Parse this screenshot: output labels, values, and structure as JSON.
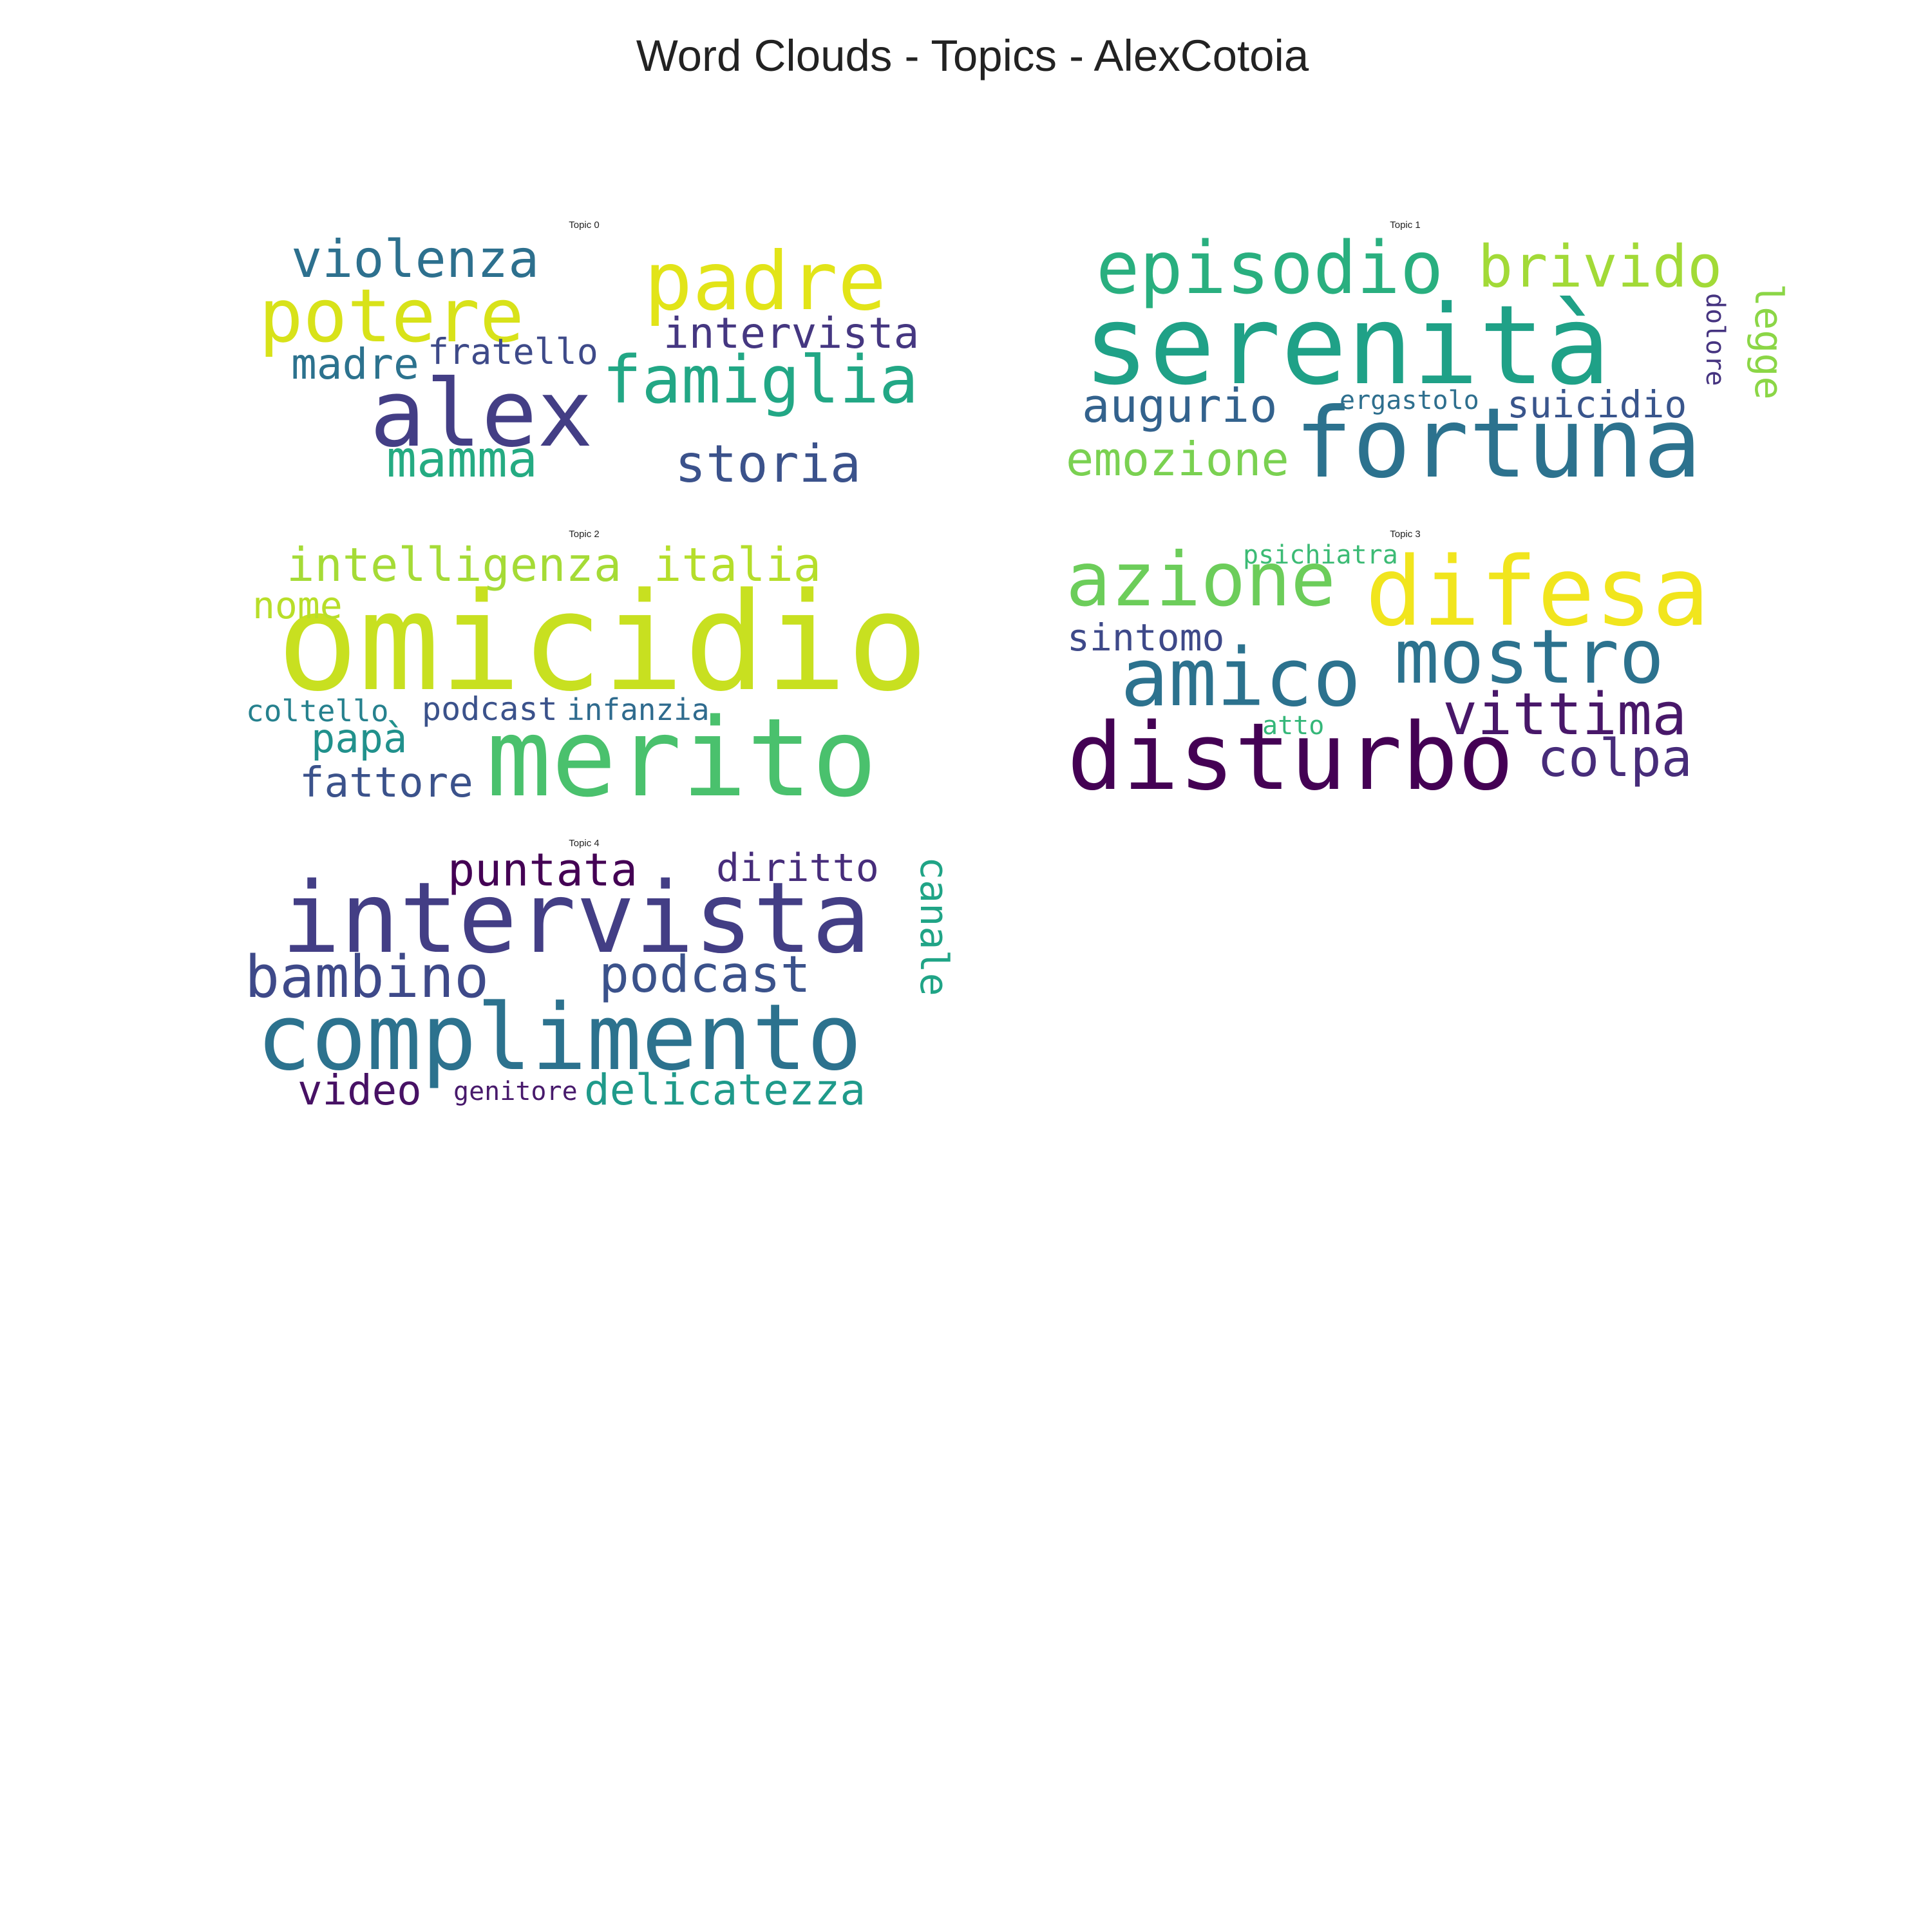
{
  "figure_title": "Word Clouds - Topics - AlexCotoia",
  "panels": [
    {
      "title": "Topic 0",
      "words": [
        {
          "text": "alex",
          "color": "#433e85"
        },
        {
          "text": "padre",
          "color": "#e2e418"
        },
        {
          "text": "potere",
          "color": "#d8e219"
        },
        {
          "text": "famiglia",
          "color": "#22a785"
        },
        {
          "text": "violenza",
          "color": "#2d708e"
        },
        {
          "text": "storia",
          "color": "#3b528b"
        },
        {
          "text": "mamma",
          "color": "#25ab82"
        },
        {
          "text": "intervista",
          "color": "#453781"
        },
        {
          "text": "madre",
          "color": "#2c728e"
        },
        {
          "text": "fratello",
          "color": "#3e4a89"
        }
      ]
    },
    {
      "title": "Topic 1",
      "words": [
        {
          "text": "serenità",
          "color": "#1fa187"
        },
        {
          "text": "fortuna",
          "color": "#2c728e"
        },
        {
          "text": "episodio",
          "color": "#29af7f"
        },
        {
          "text": "brivido",
          "color": "#a2da37"
        },
        {
          "text": "augurio",
          "color": "#33628d"
        },
        {
          "text": "emozione",
          "color": "#7ad151"
        },
        {
          "text": "suicidio",
          "color": "#39558c"
        },
        {
          "text": "legge",
          "color": "#8bd646"
        },
        {
          "text": "ergastolo",
          "color": "#2e6f8e"
        },
        {
          "text": "dolore",
          "color": "#463480"
        }
      ]
    },
    {
      "title": "Topic 2",
      "words": [
        {
          "text": "omicidio",
          "color": "#c8e020"
        },
        {
          "text": "merito",
          "color": "#4ac16d"
        },
        {
          "text": "intelligenza",
          "color": "#a5db36"
        },
        {
          "text": "italia",
          "color": "#b5de2b"
        },
        {
          "text": "nome",
          "color": "#b8de29"
        },
        {
          "text": "fattore",
          "color": "#3b528b"
        },
        {
          "text": "papà",
          "color": "#21918c"
        },
        {
          "text": "podcast",
          "color": "#3b528b"
        },
        {
          "text": "coltello",
          "color": "#26818e"
        },
        {
          "text": "infanzia",
          "color": "#2f6b8e"
        }
      ]
    },
    {
      "title": "Topic 3",
      "words": [
        {
          "text": "difesa",
          "color": "#f1e51d"
        },
        {
          "text": "azione",
          "color": "#6ccd5a"
        },
        {
          "text": "amico",
          "color": "#2c728e"
        },
        {
          "text": "mostro",
          "color": "#2c728e"
        },
        {
          "text": "disturbo",
          "color": "#440154"
        },
        {
          "text": "vittima",
          "color": "#481769"
        },
        {
          "text": "colpa",
          "color": "#472c7a"
        },
        {
          "text": "sintomo",
          "color": "#3e4989"
        },
        {
          "text": "psichiatra",
          "color": "#3cbb75"
        },
        {
          "text": "atto",
          "color": "#35b779"
        }
      ]
    },
    {
      "title": "Topic 4",
      "words": [
        {
          "text": "intervista",
          "color": "#433e85"
        },
        {
          "text": "complimento",
          "color": "#2c728e"
        },
        {
          "text": "bambino",
          "color": "#3e4989"
        },
        {
          "text": "podcast",
          "color": "#3b528b"
        },
        {
          "text": "puntata",
          "color": "#440154"
        },
        {
          "text": "diritto",
          "color": "#472d7b"
        },
        {
          "text": "canale",
          "color": "#20a486"
        },
        {
          "text": "delicatezza",
          "color": "#1f9a8a"
        },
        {
          "text": "video",
          "color": "#471164"
        },
        {
          "text": "genitore",
          "color": "#481a6c"
        }
      ]
    }
  ]
}
